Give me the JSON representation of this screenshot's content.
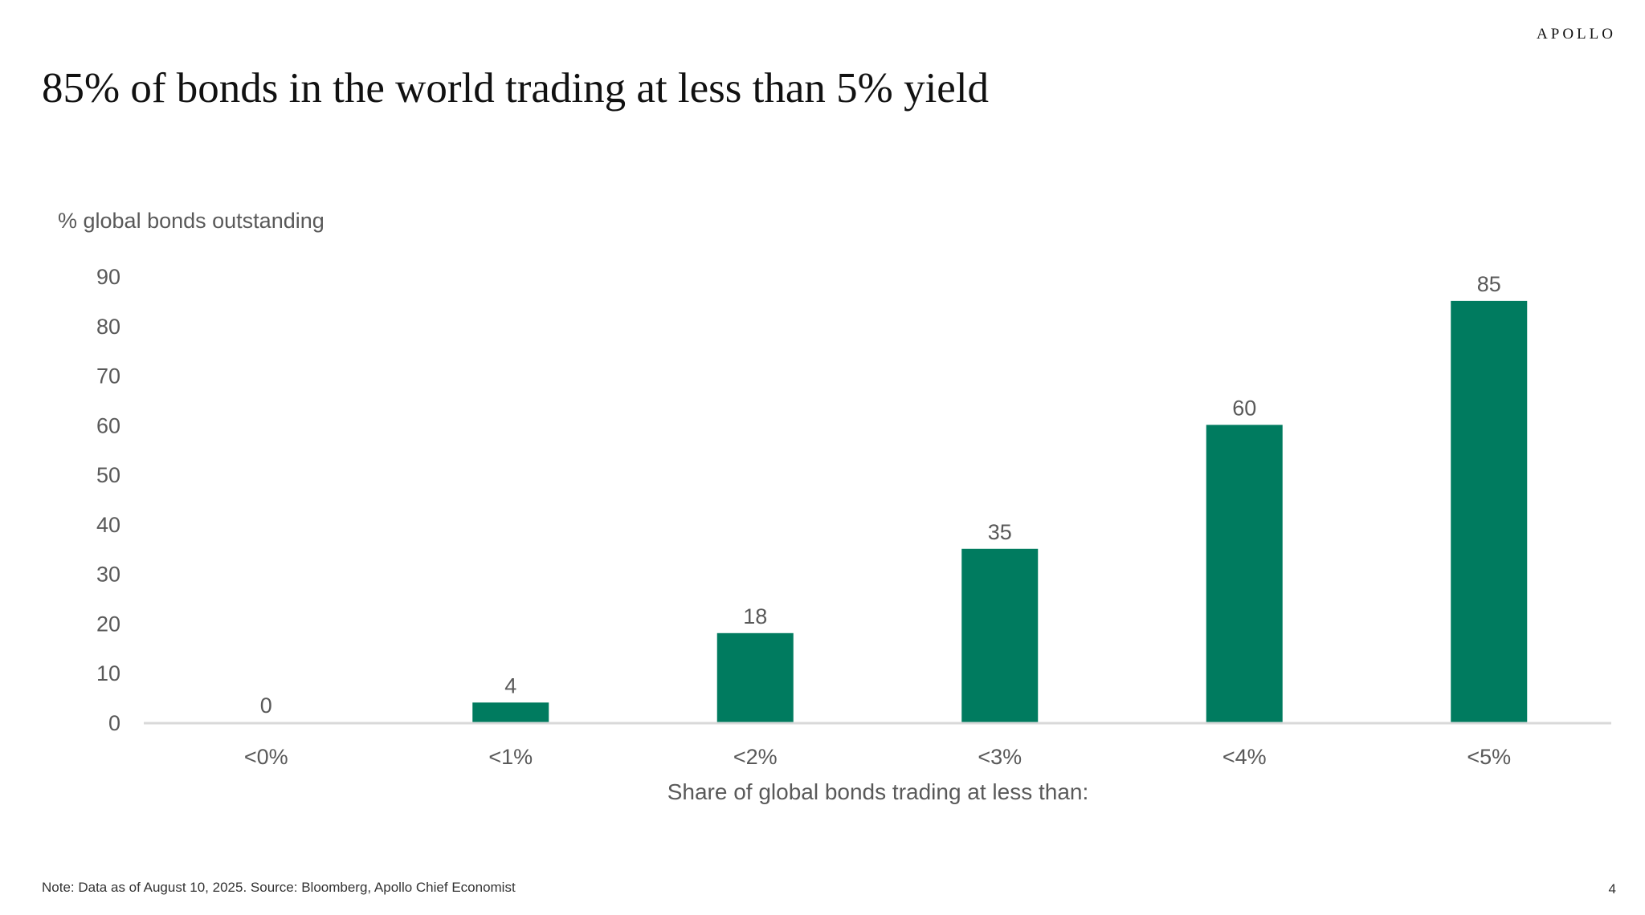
{
  "logo": "APOLLO",
  "title": "85% of bonds in the world trading at less than 5% yield",
  "note": "Note: Data as of August 10, 2025. Source: Bloomberg, Apollo Chief Economist",
  "page_number": "4",
  "chart_data": {
    "type": "bar",
    "ylabel": "% global bonds outstanding",
    "xlabel": "Share of global bonds trading at less than:",
    "categories": [
      "<0%",
      "<1%",
      "<2%",
      "<3%",
      "<4%",
      "<5%"
    ],
    "values": [
      0,
      4,
      18,
      35,
      60,
      85
    ],
    "data_labels": [
      "0",
      "4",
      "18",
      "35",
      "60",
      "85"
    ],
    "ylim": [
      0,
      90
    ],
    "yticks": [
      0,
      10,
      20,
      30,
      40,
      50,
      60,
      70,
      80,
      90
    ],
    "grid": false,
    "bar_color": "#007B5F",
    "axis_color": "#D9D9D9",
    "text_color": "#595959"
  }
}
